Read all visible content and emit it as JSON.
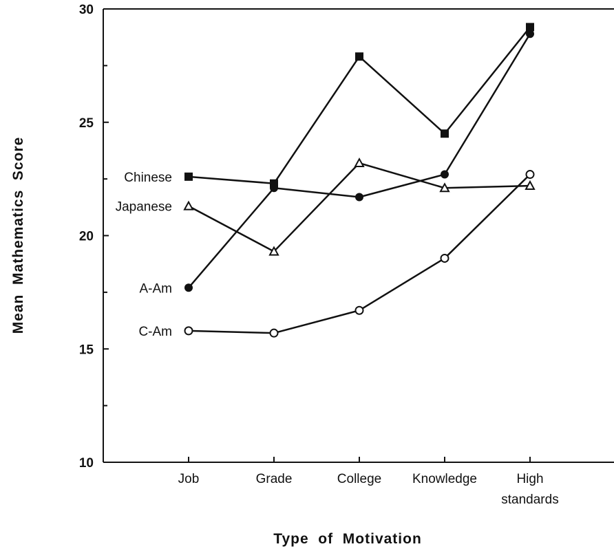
{
  "chart_data": {
    "type": "line",
    "title": "",
    "xlabel": "Type  of  Motivation",
    "ylabel": "Mean  Mathematics  Score",
    "ylim": [
      10,
      30
    ],
    "yticks": [
      10,
      15,
      20,
      25,
      30
    ],
    "grid": false,
    "categories": [
      "Job",
      "Grade",
      "College",
      "Knowledge",
      "High standards"
    ],
    "category_labels": [
      [
        "Job"
      ],
      [
        "Grade"
      ],
      [
        "College"
      ],
      [
        "Knowledge"
      ],
      [
        "High",
        "standards"
      ]
    ],
    "series": [
      {
        "name": "Chinese",
        "marker": "filled-square",
        "values": [
          22.6,
          22.3,
          27.9,
          24.5,
          29.2
        ]
      },
      {
        "name": "Japanese",
        "marker": "open-triangle",
        "values": [
          21.3,
          19.3,
          23.2,
          22.1,
          22.2
        ]
      },
      {
        "name": "A-Am",
        "marker": "filled-circle",
        "values": [
          17.7,
          22.1,
          21.7,
          22.7,
          28.9
        ]
      },
      {
        "name": "C-Am",
        "marker": "open-circle",
        "values": [
          15.8,
          15.7,
          16.7,
          19.0,
          22.7
        ]
      }
    ]
  }
}
